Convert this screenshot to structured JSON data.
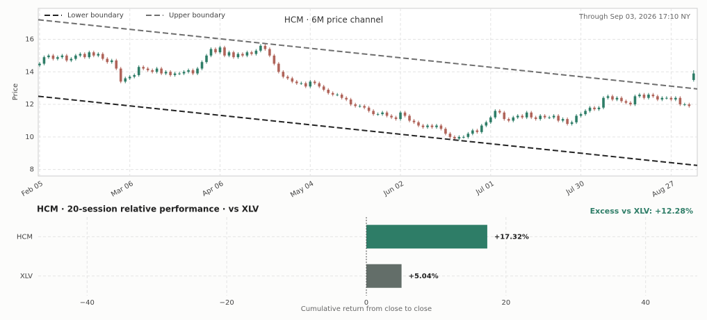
{
  "chart_data": [
    {
      "type": "candlestick",
      "title": "HCM · 6M price channel",
      "annotation": "Through Sep 03, 2026 17:10 NY",
      "ylabel": "Price",
      "up_color": "#2e7d67",
      "down_color": "#b0645a",
      "grid": true,
      "legend": "upper left",
      "ylim": [
        7.6,
        17.9
      ],
      "yticks": [
        8,
        10,
        12,
        14,
        16
      ],
      "xlim": [
        -0.3,
        145.8
      ],
      "categories": [
        "Feb 05",
        null,
        null,
        null,
        null,
        null,
        null,
        null,
        null,
        null,
        null,
        null,
        null,
        null,
        null,
        null,
        null,
        null,
        null,
        null,
        "Mar 06",
        null,
        null,
        null,
        null,
        null,
        null,
        null,
        null,
        null,
        null,
        null,
        null,
        null,
        null,
        null,
        null,
        null,
        null,
        null,
        "Apr 06",
        null,
        null,
        null,
        null,
        null,
        null,
        null,
        null,
        null,
        null,
        null,
        null,
        null,
        null,
        null,
        null,
        null,
        null,
        null,
        "May 04",
        null,
        null,
        null,
        null,
        null,
        null,
        null,
        null,
        null,
        null,
        null,
        null,
        null,
        null,
        null,
        null,
        null,
        null,
        null,
        "Jun 02",
        null,
        null,
        null,
        null,
        null,
        null,
        null,
        null,
        null,
        null,
        null,
        null,
        null,
        null,
        null,
        null,
        null,
        null,
        null,
        "Jul 01",
        null,
        null,
        null,
        null,
        null,
        null,
        null,
        null,
        null,
        null,
        null,
        null,
        null,
        null,
        null,
        null,
        null,
        null,
        null,
        "Jul 30",
        null,
        null,
        null,
        null,
        null,
        null,
        null,
        null,
        null,
        null,
        null,
        null,
        null,
        null,
        null,
        null,
        null,
        null,
        null,
        "Aug 27",
        null,
        null,
        null,
        null,
        null
      ],
      "open": [
        14.4,
        14.5,
        14.9,
        15.0,
        14.8,
        14.9,
        15.0,
        14.7,
        14.8,
        15.0,
        15.1,
        14.9,
        15.2,
        15.0,
        15.1,
        14.8,
        14.6,
        14.7,
        14.2,
        13.4,
        13.6,
        13.7,
        13.8,
        14.3,
        14.2,
        14.1,
        14.0,
        14.2,
        13.9,
        14.0,
        13.8,
        13.9,
        13.9,
        14.0,
        14.1,
        13.9,
        14.2,
        14.6,
        15.0,
        15.4,
        15.2,
        15.5,
        15.0,
        15.2,
        14.9,
        15.1,
        15.0,
        15.2,
        15.1,
        15.3,
        15.6,
        15.4,
        15.0,
        14.5,
        14.0,
        13.7,
        13.6,
        13.4,
        13.3,
        13.3,
        13.1,
        13.4,
        13.3,
        13.1,
        12.9,
        12.7,
        12.6,
        12.6,
        12.4,
        12.3,
        12.0,
        11.9,
        11.9,
        11.8,
        11.6,
        11.4,
        11.4,
        11.5,
        11.3,
        11.2,
        11.1,
        11.5,
        11.3,
        11.0,
        10.9,
        10.7,
        10.6,
        10.7,
        10.6,
        10.7,
        10.5,
        10.2,
        10.0,
        9.9,
        10.0,
        10.0,
        10.2,
        10.4,
        10.3,
        10.7,
        10.9,
        11.2,
        11.6,
        11.5,
        11.1,
        11.0,
        11.2,
        11.3,
        11.2,
        11.5,
        11.2,
        11.1,
        11.3,
        11.2,
        11.2,
        11.3,
        11.0,
        11.1,
        10.8,
        10.9,
        11.3,
        11.4,
        11.6,
        11.8,
        11.7,
        11.8,
        12.4,
        12.5,
        12.3,
        12.4,
        12.2,
        12.1,
        12.0,
        12.5,
        12.6,
        12.4,
        12.6,
        12.5,
        12.3,
        12.4,
        12.4,
        12.3,
        12.4,
        12.0,
        12.0,
        13.5
      ],
      "high": [
        14.6,
        15.0,
        15.1,
        15.1,
        15.0,
        15.1,
        15.1,
        14.9,
        15.1,
        15.2,
        15.2,
        15.3,
        15.3,
        15.2,
        15.2,
        14.9,
        14.8,
        14.8,
        14.3,
        13.7,
        13.8,
        13.9,
        14.4,
        14.4,
        14.3,
        14.2,
        14.3,
        14.3,
        14.1,
        14.1,
        14.0,
        14.0,
        14.1,
        14.2,
        14.2,
        14.3,
        14.7,
        15.1,
        15.5,
        15.5,
        15.6,
        15.6,
        15.3,
        15.3,
        15.2,
        15.2,
        15.3,
        15.3,
        15.4,
        15.7,
        15.7,
        15.5,
        15.1,
        14.6,
        14.1,
        13.8,
        13.7,
        13.5,
        13.4,
        13.4,
        13.5,
        13.5,
        13.4,
        13.2,
        13.0,
        12.8,
        12.7,
        12.7,
        12.5,
        12.4,
        12.1,
        12.0,
        12.0,
        11.9,
        11.7,
        11.5,
        11.6,
        11.6,
        11.4,
        11.3,
        11.6,
        11.6,
        11.4,
        11.1,
        11.0,
        10.8,
        10.8,
        10.8,
        10.8,
        10.8,
        10.6,
        10.3,
        10.1,
        10.1,
        10.1,
        10.3,
        10.5,
        10.5,
        10.8,
        11.0,
        11.3,
        11.7,
        11.7,
        11.6,
        11.2,
        11.3,
        11.4,
        11.4,
        11.6,
        11.6,
        11.3,
        11.4,
        11.4,
        11.3,
        11.4,
        11.4,
        11.2,
        11.2,
        11.0,
        11.4,
        11.5,
        11.7,
        11.9,
        11.9,
        11.9,
        12.5,
        12.6,
        12.6,
        12.5,
        12.5,
        12.3,
        12.2,
        12.6,
        12.7,
        12.7,
        12.7,
        12.7,
        12.6,
        12.5,
        12.5,
        12.5,
        12.5,
        12.5,
        12.1,
        12.1,
        14.1
      ],
      "low": [
        14.3,
        14.4,
        14.8,
        14.7,
        14.7,
        14.8,
        14.6,
        14.6,
        14.7,
        14.9,
        14.8,
        14.8,
        14.9,
        14.9,
        14.7,
        14.5,
        14.5,
        14.1,
        13.3,
        13.3,
        13.5,
        13.6,
        13.7,
        14.1,
        14.0,
        13.9,
        13.9,
        13.8,
        13.8,
        13.7,
        13.7,
        13.8,
        13.8,
        13.9,
        13.8,
        13.8,
        14.1,
        14.5,
        14.9,
        15.1,
        15.1,
        14.9,
        14.9,
        14.8,
        14.8,
        14.9,
        14.9,
        15.0,
        15.0,
        15.2,
        15.3,
        14.9,
        14.4,
        13.9,
        13.6,
        13.5,
        13.3,
        13.2,
        13.2,
        13.0,
        13.0,
        13.2,
        13.0,
        12.8,
        12.6,
        12.5,
        12.5,
        12.3,
        12.2,
        11.9,
        11.8,
        11.8,
        11.7,
        11.5,
        11.3,
        11.3,
        11.3,
        11.2,
        11.1,
        11.0,
        11.0,
        11.2,
        10.9,
        10.8,
        10.6,
        10.5,
        10.5,
        10.5,
        10.5,
        10.4,
        10.1,
        9.9,
        9.8,
        9.8,
        9.9,
        9.9,
        10.1,
        10.2,
        10.2,
        10.6,
        10.8,
        11.1,
        11.4,
        11.0,
        10.9,
        10.9,
        11.1,
        11.1,
        11.1,
        11.1,
        11.0,
        11.0,
        11.1,
        11.1,
        11.1,
        10.9,
        10.9,
        10.7,
        10.7,
        10.8,
        11.2,
        11.3,
        11.5,
        11.6,
        11.6,
        11.7,
        12.3,
        12.2,
        12.2,
        12.1,
        12.0,
        11.9,
        11.9,
        12.4,
        12.3,
        12.3,
        12.4,
        12.2,
        12.2,
        12.3,
        12.2,
        12.2,
        11.9,
        11.9,
        11.8,
        13.4
      ],
      "close": [
        14.5,
        14.9,
        15.0,
        14.8,
        14.9,
        15.0,
        14.7,
        14.8,
        15.0,
        15.1,
        14.9,
        15.2,
        15.0,
        15.1,
        14.8,
        14.6,
        14.7,
        14.2,
        13.4,
        13.6,
        13.7,
        13.8,
        14.3,
        14.2,
        14.1,
        14.0,
        14.2,
        13.9,
        14.0,
        13.8,
        13.9,
        13.9,
        14.0,
        14.1,
        13.9,
        14.2,
        14.6,
        15.0,
        15.4,
        15.2,
        15.5,
        15.0,
        15.2,
        14.9,
        15.1,
        15.0,
        15.2,
        15.1,
        15.3,
        15.6,
        15.4,
        15.0,
        14.5,
        14.0,
        13.7,
        13.6,
        13.4,
        13.3,
        13.3,
        13.1,
        13.4,
        13.3,
        13.1,
        12.9,
        12.7,
        12.6,
        12.6,
        12.4,
        12.3,
        12.0,
        11.9,
        11.9,
        11.8,
        11.6,
        11.4,
        11.4,
        11.5,
        11.3,
        11.2,
        11.1,
        11.5,
        11.3,
        11.0,
        10.9,
        10.7,
        10.6,
        10.7,
        10.6,
        10.7,
        10.5,
        10.2,
        10.0,
        9.9,
        10.0,
        10.0,
        10.2,
        10.4,
        10.3,
        10.7,
        10.9,
        11.2,
        11.6,
        11.5,
        11.1,
        11.0,
        11.2,
        11.3,
        11.2,
        11.5,
        11.2,
        11.1,
        11.3,
        11.2,
        11.2,
        11.3,
        11.0,
        11.1,
        10.8,
        10.9,
        11.3,
        11.4,
        11.6,
        11.8,
        11.7,
        11.8,
        12.4,
        12.5,
        12.3,
        12.4,
        12.2,
        12.1,
        12.0,
        12.5,
        12.6,
        12.4,
        12.6,
        12.5,
        12.3,
        12.4,
        12.4,
        12.3,
        12.4,
        12.0,
        12.0,
        11.9,
        13.9
      ],
      "channel": [
        {
          "name": "Lower boundary",
          "color": "#222222",
          "x": [
            -0.3,
            145.8
          ],
          "values": [
            12.5,
            8.25
          ]
        },
        {
          "name": "Upper boundary",
          "color": "#6e6e6e",
          "x": [
            -0.3,
            145.8
          ],
          "values": [
            17.2,
            12.95
          ]
        }
      ]
    },
    {
      "type": "hbar",
      "title": "HCM  ·  20-session relative performance  ·  vs XLV",
      "annotation": "Excess vs XLV: +12.28%",
      "annotation_color": "#2e7d67",
      "xlabel": "Cumulative return from close to close",
      "grid": true,
      "categories": [
        "HCM",
        "XLV"
      ],
      "values": [
        17.32,
        5.04
      ],
      "value_labels": [
        "+17.32%",
        "+5.04%"
      ],
      "colors": [
        "#2e7d67",
        "#636e69"
      ],
      "xlim": [
        -47,
        47.4
      ],
      "xticks": [
        {
          "value": -40,
          "label": "−40"
        },
        {
          "value": -20,
          "label": "−20"
        },
        0,
        20,
        40
      ]
    }
  ]
}
